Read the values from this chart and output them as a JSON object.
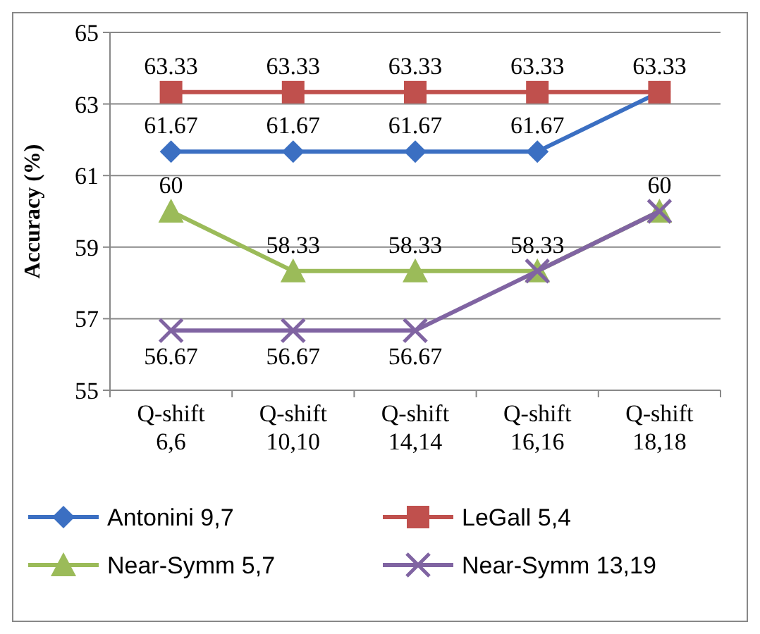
{
  "chart_data": {
    "type": "line",
    "ylabel": "Accuracy (%)",
    "categories": [
      "Q-shift 6,6",
      "Q-shift 10,10",
      "Q-shift 14,14",
      "Q-shift 16,16",
      "Q-shift 18,18"
    ],
    "ylim": [
      55,
      65
    ],
    "yticks": [
      55,
      57,
      59,
      61,
      63,
      65
    ],
    "grid": "y",
    "legend": "bottom",
    "series": [
      {
        "name": "Antonini 9,7",
        "color": "#3b6fc2",
        "marker": "diamond",
        "values": [
          61.67,
          61.67,
          61.67,
          61.67,
          63.33
        ],
        "value_labels": [
          "61.67",
          "61.67",
          "61.67",
          "61.67",
          null
        ]
      },
      {
        "name": "LeGall 5,4",
        "color": "#c0504d",
        "marker": "square",
        "values": [
          63.33,
          63.33,
          63.33,
          63.33,
          63.33
        ],
        "value_labels": [
          "63.33",
          "63.33",
          "63.33",
          "63.33",
          "63.33"
        ]
      },
      {
        "name": "Near-Symm 5,7",
        "color": "#9bbb59",
        "marker": "triangle",
        "values": [
          60,
          58.33,
          58.33,
          58.33,
          60
        ],
        "value_labels": [
          "60",
          "58.33",
          "58.33",
          "58.33",
          "60"
        ]
      },
      {
        "name": "Near-Symm 13,19",
        "color": "#8064a2",
        "marker": "cross",
        "values": [
          56.67,
          56.67,
          56.67,
          58.33,
          60
        ],
        "value_labels": [
          "56.67",
          "56.67",
          "56.67",
          null,
          null
        ]
      }
    ]
  }
}
